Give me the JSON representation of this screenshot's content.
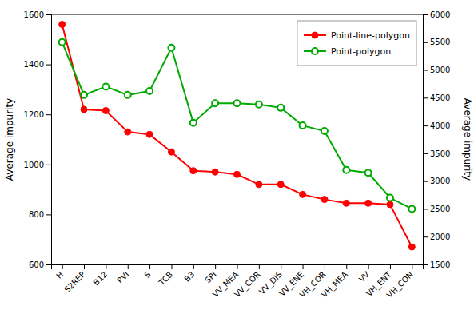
{
  "chart_data": {
    "type": "line",
    "categories": [
      "H",
      "S2REP",
      "B12",
      "PVI",
      "S",
      "TCB",
      "B3",
      "SPI",
      "VV_MEA",
      "VV_COR",
      "VV_DIS",
      "VV_ENE",
      "VH_COR",
      "VH_MEA",
      "VV",
      "VH_ENT",
      "VH_CON"
    ],
    "series": [
      {
        "name": "Point-line-polygon",
        "color": "#FF0000",
        "marker": "circle",
        "values": [
          1560,
          1220,
          1215,
          1130,
          1120,
          1050,
          975,
          970,
          960,
          920,
          920,
          880,
          860,
          845,
          845,
          840,
          670
        ]
      },
      {
        "name": "Point-polygon",
        "color": "#00AA00",
        "marker": "circle-open",
        "axis": "y2",
        "values": [
          5500,
          4550,
          4700,
          4550,
          4620,
          5400,
          4050,
          4400,
          4400,
          4380,
          4320,
          4000,
          3900,
          3200,
          3150,
          2700,
          2500
        ]
      }
    ],
    "ylabel": "Average impurity",
    "y2label": "Average impurity",
    "ylim": [
      600,
      1600
    ],
    "yticks": [
      600,
      800,
      1000,
      1200,
      1400,
      1600
    ],
    "y2lim": [
      1500,
      6000
    ],
    "y2ticks": [
      1500,
      2000,
      2500,
      3000,
      3500,
      4000,
      4500,
      5000,
      5500,
      6000
    ],
    "legend": "upper right",
    "grid": false
  }
}
